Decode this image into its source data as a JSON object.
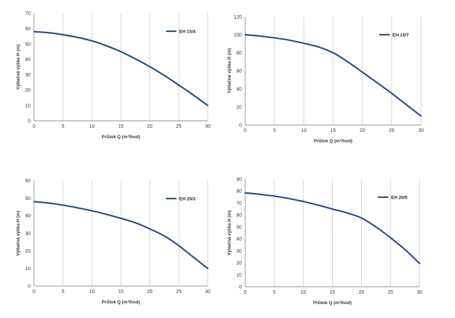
{
  "chart_data": [
    {
      "type": "line",
      "xlabel": "Průtok Q (m³/hod)",
      "ylabel": "Výtlačná výška H (m)",
      "xlim": [
        0,
        30
      ],
      "ylim": [
        0,
        70
      ],
      "xticks": [
        "0",
        "5",
        "10",
        "15",
        "20",
        "25",
        "30"
      ],
      "yticks": [
        "0",
        "10",
        "20",
        "30",
        "40",
        "50",
        "60",
        "70"
      ],
      "grid": "vertical",
      "legend_position": "top-right",
      "series": [
        {
          "name": "EH 15/4",
          "color": "#2e4d7b",
          "x": [
            0,
            2.5,
            5,
            7.5,
            10,
            12.5,
            15,
            17.5,
            20,
            22.5,
            25,
            27.5,
            30
          ],
          "y": [
            58,
            57.3,
            56,
            54.3,
            52,
            48.8,
            45,
            40.3,
            35.2,
            29.5,
            23.3,
            16.8,
            10
          ]
        }
      ]
    },
    {
      "type": "line",
      "xlabel": "Průtok Q (m³/hod)",
      "ylabel": "Výtlačná výška H (m)",
      "xlim": [
        0,
        30
      ],
      "ylim": [
        0,
        120
      ],
      "xticks": [
        "0",
        "5",
        "10",
        "15",
        "20",
        "25",
        "30"
      ],
      "yticks": [
        "0",
        "20",
        "40",
        "60",
        "80",
        "100",
        "120"
      ],
      "grid": "vertical",
      "legend_position": "top-right",
      "series": [
        {
          "name": "EH 15/7",
          "color": "#2e4d7b",
          "x": [
            0,
            2.5,
            5,
            7.5,
            10,
            12.5,
            15,
            17.5,
            20,
            22.5,
            25,
            27.5,
            30
          ],
          "y": [
            100,
            98.5,
            96.5,
            94,
            90.5,
            86.5,
            80,
            70,
            58.5,
            47,
            35,
            22.5,
            10
          ]
        }
      ]
    },
    {
      "type": "line",
      "xlabel": "Průtok Q (m³/hod)",
      "ylabel": "Výtlačná výška H (m)",
      "xlim": [
        0,
        30
      ],
      "ylim": [
        0,
        60
      ],
      "xticks": [
        "0",
        "5",
        "10",
        "15",
        "20",
        "25",
        "30"
      ],
      "yticks": [
        "0",
        "10",
        "20",
        "30",
        "40",
        "50",
        "60"
      ],
      "grid": "vertical",
      "legend_position": "top-right",
      "series": [
        {
          "name": "EH 20/3",
          "color": "#2e4d7b",
          "x": [
            0,
            2.5,
            5,
            7.5,
            10,
            12.5,
            15,
            17.5,
            20,
            22.5,
            25,
            27.5,
            30
          ],
          "y": [
            48,
            47.2,
            46,
            44.5,
            42.8,
            40.8,
            38.5,
            36,
            32.5,
            28.5,
            23,
            16.5,
            10
          ]
        }
      ]
    },
    {
      "type": "line",
      "xlabel": "Průtok Q (m³/hod)",
      "ylabel": "Výtlačná výška H (m)",
      "xlim": [
        0,
        30
      ],
      "ylim": [
        0,
        90
      ],
      "xticks": [
        "0",
        "5",
        "10",
        "15",
        "20",
        "25",
        "30"
      ],
      "yticks": [
        "0",
        "10",
        "20",
        "30",
        "40",
        "50",
        "60",
        "70",
        "80",
        "90"
      ],
      "grid": "vertical",
      "legend_position": "top-right",
      "series": [
        {
          "name": "EH 20/5",
          "color": "#2e4d7b",
          "x": [
            0,
            2.5,
            5,
            7.5,
            10,
            12.5,
            15,
            17.5,
            20,
            22.5,
            25,
            27.5,
            30
          ],
          "y": [
            78.5,
            77.3,
            75.8,
            73.8,
            71.3,
            68.3,
            65,
            61.8,
            57.5,
            50,
            41,
            31,
            19.5
          ]
        }
      ]
    }
  ]
}
